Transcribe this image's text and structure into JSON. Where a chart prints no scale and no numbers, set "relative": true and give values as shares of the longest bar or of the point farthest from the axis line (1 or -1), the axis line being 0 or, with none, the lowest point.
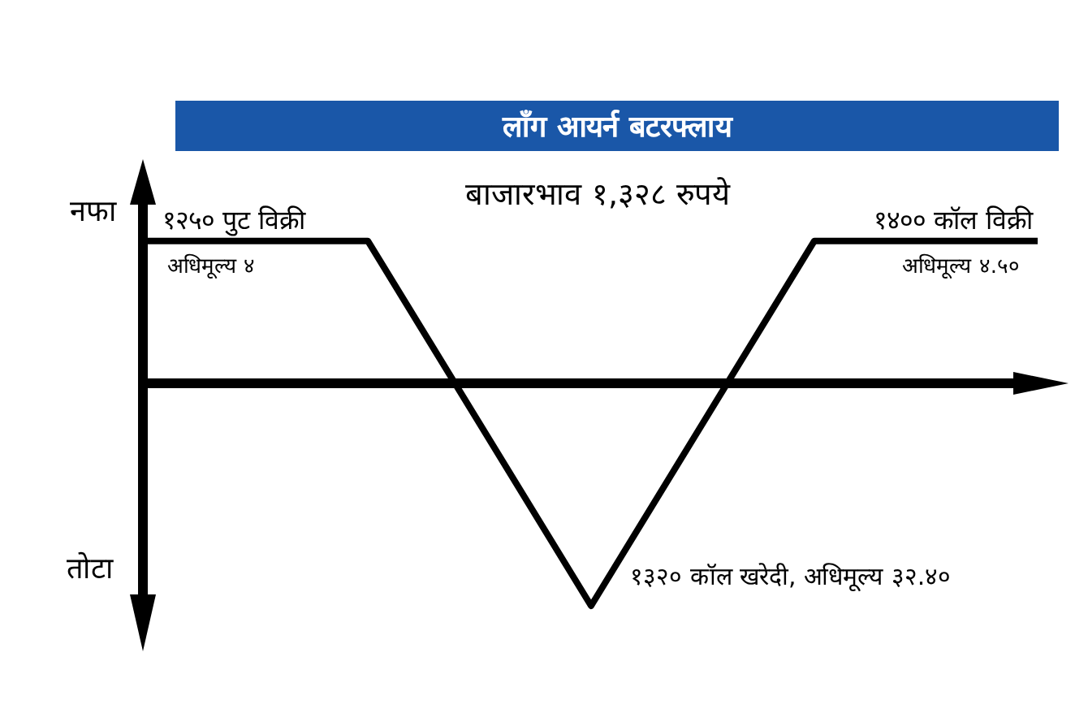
{
  "chart_data": {
    "type": "line",
    "title": "लाँग आयर्न बटरफ्लाय",
    "relative": true,
    "categories": [
      null,
      null,
      null,
      null,
      null
    ],
    "series": [
      {
        "color": "#000000",
        "values": [
          0.64,
          0.64,
          -1,
          0.64,
          0.64
        ]
      }
    ],
    "annotations": [
      "नफा",
      "तोटा",
      "१२५० पुट विक्री",
      "अधिमूल्य ४",
      "बाजारभाव १,३२८ रुपये",
      "१४०० कॉल विक्री",
      "अधिमूल्य ४.५०",
      "१३२० कॉल खरेदी, अधिमूल्य ३२.४०"
    ]
  }
}
